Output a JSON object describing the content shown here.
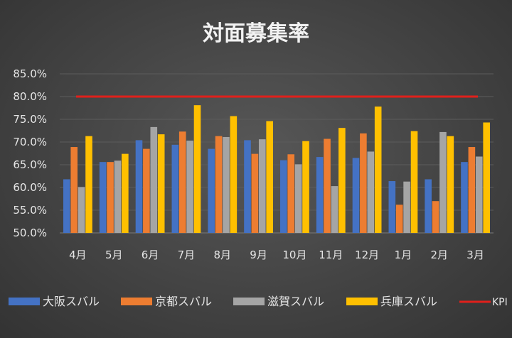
{
  "chart_data": {
    "type": "bar",
    "title": "対面募集率",
    "xlabel": "",
    "ylabel": "",
    "categories": [
      "4月",
      "5月",
      "6月",
      "7月",
      "8月",
      "9月",
      "10月",
      "11月",
      "12月",
      "1月",
      "2月",
      "3月"
    ],
    "ylim": [
      50,
      85
    ],
    "yticks": [
      "50.0%",
      "55.0%",
      "60.0%",
      "65.0%",
      "70.0%",
      "75.0%",
      "80.0%",
      "85.0%"
    ],
    "ytick_values": [
      50,
      55,
      60,
      65,
      70,
      75,
      80,
      85
    ],
    "grid": true,
    "legend_position": "bottom",
    "series": [
      {
        "name": "大阪スバル",
        "color": "#4472c4",
        "values": [
          61.8,
          65.6,
          70.4,
          69.4,
          68.5,
          70.4,
          66.0,
          66.7,
          66.5,
          61.4,
          61.8,
          65.6
        ]
      },
      {
        "name": "京都スバル",
        "color": "#ed7d31",
        "values": [
          68.9,
          65.6,
          68.5,
          72.3,
          71.3,
          67.4,
          67.3,
          70.7,
          71.9,
          56.2,
          57.0,
          68.9
        ]
      },
      {
        "name": "滋賀スバル",
        "color": "#a5a5a5",
        "values": [
          60.1,
          65.9,
          73.3,
          70.3,
          71.1,
          70.6,
          65.1,
          60.3,
          67.9,
          61.3,
          72.2,
          66.8
        ]
      },
      {
        "name": "兵庫スバル",
        "color": "#ffc000",
        "values": [
          71.3,
          67.4,
          71.7,
          78.1,
          75.7,
          74.6,
          70.2,
          73.1,
          77.8,
          72.4,
          71.3,
          74.3
        ]
      }
    ],
    "kpi": {
      "name": "KPI",
      "color": "#e0201b",
      "value": 80.0
    }
  }
}
